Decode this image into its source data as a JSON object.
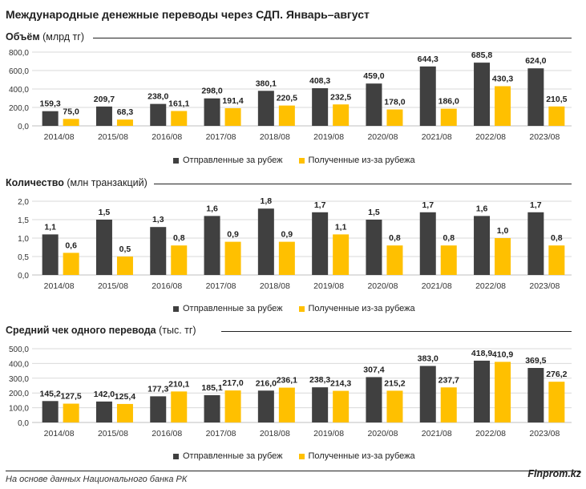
{
  "title": "Международные денежные переводы через СДП. Январь–август",
  "footer": "На основе данных Национального банка РК",
  "brand": "Finprom.kz",
  "colors": {
    "sent": "#404040",
    "received": "#FFC000",
    "grid": "#d9d9d9"
  },
  "legend": {
    "sent": "Отправленные за рубеж",
    "received": "Полученные из-за рубежа"
  },
  "chart_data": [
    {
      "type": "bar",
      "title_bold": "Объём",
      "title_unit": " (млрд тг)",
      "categories": [
        "2014/08",
        "2015/08",
        "2016/08",
        "2017/08",
        "2018/08",
        "2019/08",
        "2020/08",
        "2021/08",
        "2022/08",
        "2023/08"
      ],
      "series": [
        {
          "name": "Отправленные за рубеж",
          "values": [
            159.3,
            209.7,
            238.0,
            298.0,
            380.1,
            408.3,
            459.0,
            644.3,
            685.8,
            624.0
          ]
        },
        {
          "name": "Полученные из-за рубежа",
          "values": [
            75.0,
            68.3,
            161.1,
            191.4,
            220.5,
            232.5,
            178.0,
            186.0,
            430.3,
            210.5
          ]
        }
      ],
      "ylim": [
        0,
        800
      ],
      "yticks": [
        "0,0",
        "200,0",
        "400,0",
        "600,0",
        "800,0"
      ]
    },
    {
      "type": "bar",
      "title_bold": "Количество",
      "title_unit": " (млн транзакций)",
      "categories": [
        "2014/08",
        "2015/08",
        "2016/08",
        "2017/08",
        "2018/08",
        "2019/08",
        "2020/08",
        "2021/08",
        "2022/08",
        "2023/08"
      ],
      "series": [
        {
          "name": "Отправленные за рубеж",
          "values": [
            1.1,
            1.5,
            1.3,
            1.6,
            1.8,
            1.7,
            1.5,
            1.7,
            1.6,
            1.7
          ]
        },
        {
          "name": "Полученные из-за рубежа",
          "values": [
            0.6,
            0.5,
            0.8,
            0.9,
            0.9,
            1.1,
            0.8,
            0.8,
            1.0,
            0.8
          ]
        }
      ],
      "ylim": [
        0,
        2.0
      ],
      "yticks": [
        "0,0",
        "0,5",
        "1,0",
        "1,5",
        "2,0"
      ]
    },
    {
      "type": "bar",
      "title_bold": "Средний чек одного перевода",
      "title_unit": " (тыс. тг)",
      "categories": [
        "2014/08",
        "2015/08",
        "2016/08",
        "2017/08",
        "2018/08",
        "2019/08",
        "2020/08",
        "2021/08",
        "2022/08",
        "2023/08"
      ],
      "series": [
        {
          "name": "Отправленные за рубеж",
          "values": [
            145.2,
            142.0,
            177.3,
            185.1,
            216.0,
            238.3,
            307.4,
            383.0,
            418.9,
            369.5
          ]
        },
        {
          "name": "Полученные из-за рубежа",
          "values": [
            127.5,
            125.4,
            210.1,
            217.0,
            236.1,
            214.3,
            215.2,
            237.7,
            410.9,
            276.2
          ]
        }
      ],
      "ylim": [
        0,
        500
      ],
      "yticks": [
        "0,0",
        "100,0",
        "200,0",
        "300,0",
        "400,0",
        "500,0"
      ]
    }
  ]
}
